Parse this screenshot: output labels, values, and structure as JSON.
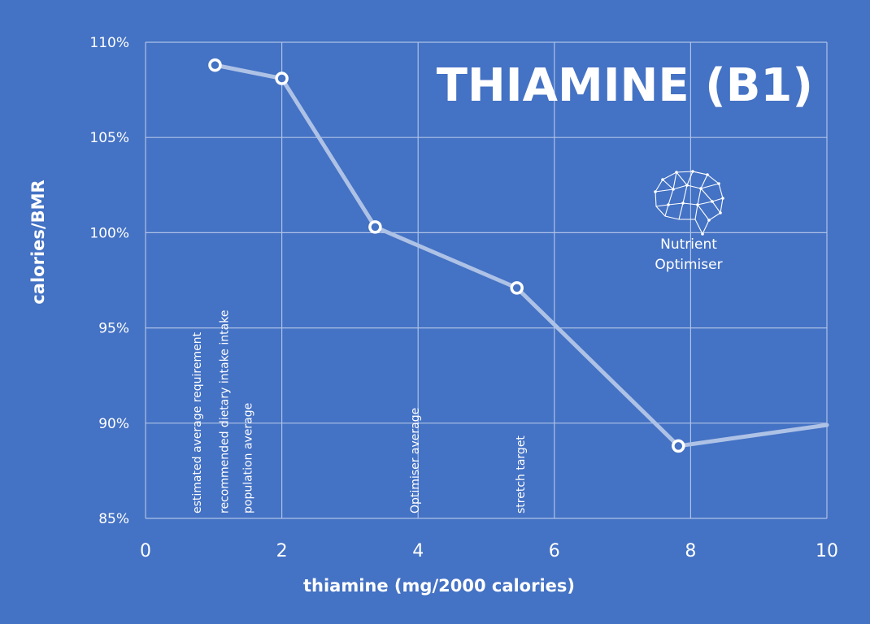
{
  "chart_data": {
    "type": "line",
    "title": "THIAMINE (B1)",
    "xlabel": "thiamine (mg/2000 calories)",
    "ylabel": "calories/BMR",
    "xlim": [
      0,
      10
    ],
    "ylim": [
      85,
      110
    ],
    "x_ticks": [
      "0",
      "2",
      "4",
      "6",
      "8",
      "10"
    ],
    "y_ticks": [
      "85%",
      "90%",
      "95%",
      "100%",
      "105%",
      "110%"
    ],
    "grid": true,
    "series": [
      {
        "x": [
          1.02,
          2.0,
          3.37,
          5.45,
          7.82,
          10.0
        ],
        "y": [
          108.8,
          108.1,
          100.3,
          97.1,
          88.8,
          89.9
        ],
        "markers": [
          true,
          true,
          true,
          true,
          true,
          false
        ]
      }
    ],
    "annotations": [
      {
        "text": "estimated average requirement",
        "x": 0.75
      },
      {
        "text": "recommended dietary intake intake",
        "x": 1.15
      },
      {
        "text": "population average",
        "x": 1.5
      },
      {
        "text": "Optimiser average",
        "x": 3.95
      },
      {
        "text": "stretch target",
        "x": 5.5
      }
    ]
  },
  "logo": {
    "icon": "brain-network-icon",
    "line1": "Nutrient",
    "line2": "Optimiser"
  },
  "colors": {
    "background": "#4472c4",
    "grid": "#aec2e6",
    "line": "#aec2e6",
    "text": "#ffffff"
  }
}
